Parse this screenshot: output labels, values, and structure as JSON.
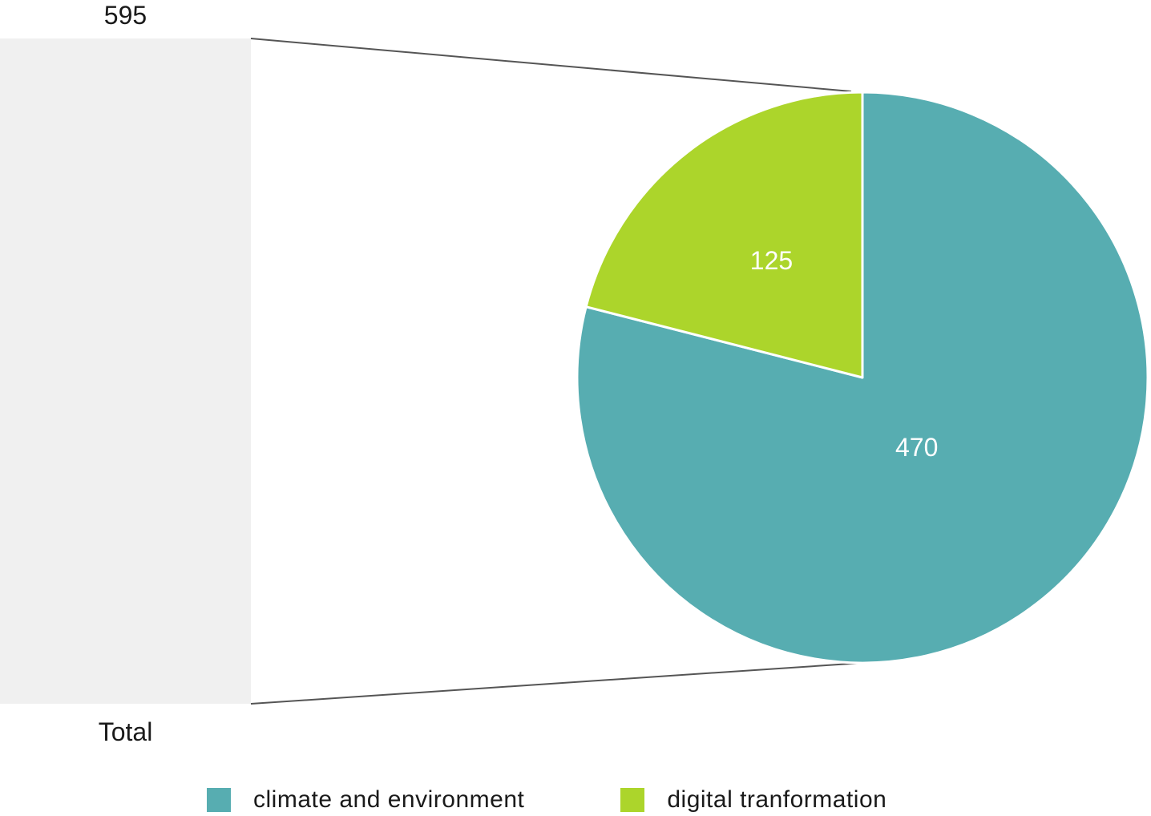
{
  "chart_data": [
    {
      "type": "bar",
      "categories": [
        "Total"
      ],
      "values": [
        595
      ],
      "data_labels": [
        "595"
      ],
      "colors": {
        "bar": "#f0f0f0",
        "connector": "#555555"
      }
    },
    {
      "type": "pie",
      "slices": [
        {
          "name": "climate and environment",
          "value": 470,
          "label": "470",
          "color": "#57adb1"
        },
        {
          "name": "digital tranformation",
          "value": 125,
          "label": "125",
          "color": "#acd52b"
        }
      ],
      "start": "12 o'clock",
      "direction": "clockwise",
      "legend_placement": "bottom"
    }
  ],
  "legend": {
    "items": [
      {
        "label": "climate and environment",
        "color": "#57adb1"
      },
      {
        "label": "digital tranformation",
        "color": "#acd52b"
      }
    ]
  }
}
